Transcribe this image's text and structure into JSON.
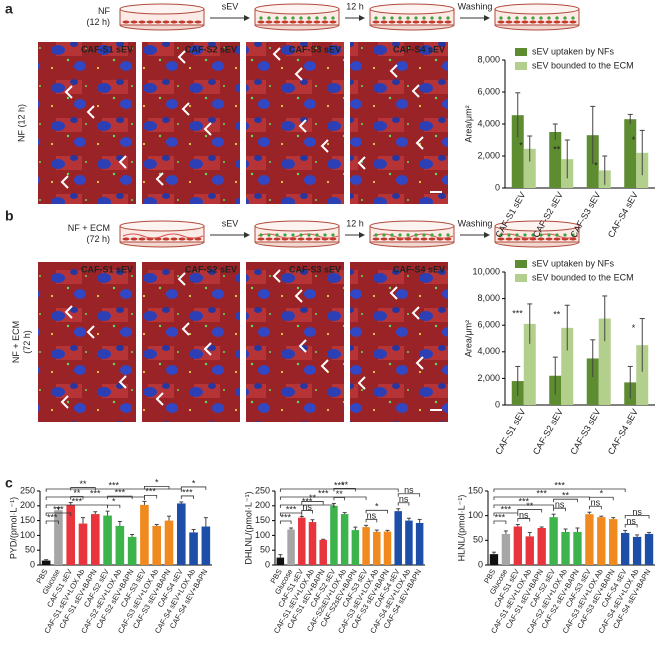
{
  "panels": {
    "a": {
      "label": "a",
      "schematic": {
        "start": [
          "NF",
          "(12 h)"
        ],
        "steps": [
          "sEV",
          "12 h",
          "Washing"
        ]
      },
      "row_label": [
        "NF (12 h)"
      ],
      "images": [
        "CAF-S1 sEV",
        "CAF-S2 sEV",
        "CAF-S3 sEV",
        "CAF-S4 sEV"
      ]
    },
    "b": {
      "label": "b",
      "schematic": {
        "start": [
          "NF + ECM",
          "(72 h)"
        ],
        "steps": [
          "sEV",
          "12 h",
          "Washing"
        ]
      },
      "row_label": [
        "NF + ECM",
        "(72 h)"
      ],
      "images": [
        "CAF-S1 sEV",
        "CAF-S2 sEV",
        "CAF-S3 sEV",
        "CAF-S4 sEV"
      ]
    },
    "c": {
      "label": "c"
    }
  },
  "chart_data": [
    {
      "type": "grouped-bar",
      "ylabel": "Area/μm²",
      "legend": "top",
      "categories": [
        "CAF-S1 sEV",
        "CAF-S2 sEV",
        "CAF-S3 sEV",
        "CAF-S4 sEV"
      ],
      "series": [
        {
          "name": "sEV uptaken by NFs",
          "color": "#5e8c31",
          "values": [
            4550,
            3500,
            3300,
            4300
          ],
          "errors": [
            1400,
            500,
            1800,
            300
          ]
        },
        {
          "name": "sEV bounded to the ECM",
          "color": "#b3cf8c",
          "values": [
            2450,
            1800,
            1100,
            2200
          ],
          "errors": [
            800,
            1200,
            900,
            1400
          ]
        }
      ],
      "significance": [
        "*",
        "**",
        "*",
        "*"
      ],
      "ylim": [
        0,
        8000
      ],
      "yticks": [
        0,
        {
          "value": 2000,
          "label": "2,000"
        },
        {
          "value": 4000,
          "label": "4,000"
        },
        {
          "value": 6000,
          "label": "6,000"
        },
        {
          "value": 8000,
          "label": "8,000"
        }
      ]
    },
    {
      "type": "grouped-bar",
      "ylabel": "Area/μm²",
      "legend": "top",
      "categories": [
        "CAF-S1 sEV",
        "CAF-S2 sEV",
        "CAF-S3 sEV",
        "CAF-S4 sEV"
      ],
      "series": [
        {
          "name": "sEV uptaken by NFs",
          "color": "#5e8c31",
          "values": [
            1800,
            2200,
            3500,
            1700
          ],
          "errors": [
            1100,
            1400,
            1400,
            1200
          ]
        },
        {
          "name": "sEV bounded to the ECM",
          "color": "#b3cf8c",
          "values": [
            6100,
            5800,
            6500,
            4500
          ],
          "errors": [
            1500,
            1700,
            1700,
            2000
          ]
        }
      ],
      "significance": [
        "***",
        "**",
        null,
        "*"
      ],
      "ylim": [
        0,
        10000
      ],
      "yticks": [
        0,
        {
          "value": 2000,
          "label": "2,000"
        },
        {
          "value": 4000,
          "label": "4,000"
        },
        {
          "value": 6000,
          "label": "6,000"
        },
        {
          "value": 8000,
          "label": "8,000"
        },
        {
          "value": 10000,
          "label": "10,000"
        }
      ]
    },
    {
      "type": "bar",
      "ylabel": "PYD/(pmol·L⁻¹)",
      "categories": [
        "PBS",
        "Glucose",
        "CAF-S1 sEV",
        "CAF-S1 sEV+LOX Ab",
        "CAF-S1 sEV+BAPN",
        "CAF-S2 sEV",
        "CAF-S2 sEV+LOX Ab",
        "CAF-S2 sEV+BAPN",
        "CAF-S3 sEV",
        "CAF-S3 sEV+LOX Ab",
        "CAF-S3 sEV+BAPN",
        "CAF-S4 sEV",
        "CAF-S4 sEV+LOX Ab",
        "CAF-S4 sEV+BAPN"
      ],
      "values": [
        15,
        185,
        203,
        140,
        172,
        167,
        132,
        95,
        203,
        132,
        150,
        208,
        110,
        130
      ],
      "errors": [
        3,
        8,
        8,
        20,
        8,
        15,
        15,
        8,
        12,
        5,
        15,
        5,
        10,
        30
      ],
      "colors": [
        "#111111",
        "#a6a6a6",
        "#e8343c",
        "#e8343c",
        "#e8343c",
        "#3cb44b",
        "#3cb44b",
        "#3cb44b",
        "#f08a1e",
        "#f08a1e",
        "#f08a1e",
        "#1e4fa8",
        "#1e4fa8",
        "#1e4fa8"
      ],
      "brackets": [
        {
          "from": 0,
          "to": 1,
          "label": "***"
        },
        {
          "from": 0,
          "to": 2,
          "label": "***"
        },
        {
          "from": 0,
          "to": 5,
          "label": "***"
        },
        {
          "from": 0,
          "to": 8,
          "label": "***"
        },
        {
          "from": 0,
          "to": 11,
          "label": "***"
        },
        {
          "from": 2,
          "to": 3,
          "label": "**"
        },
        {
          "from": 2,
          "to": 4,
          "label": "**"
        },
        {
          "from": 5,
          "to": 6,
          "label": "*"
        },
        {
          "from": 5,
          "to": 7,
          "label": "***"
        },
        {
          "from": 8,
          "to": 9,
          "label": "***"
        },
        {
          "from": 8,
          "to": 10,
          "label": "*"
        },
        {
          "from": 11,
          "to": 12,
          "label": "***"
        },
        {
          "from": 11,
          "to": 13,
          "label": "*"
        }
      ],
      "ylim": [
        0,
        250
      ],
      "yticks": [
        0,
        50,
        100,
        150,
        200,
        250
      ]
    },
    {
      "type": "bar",
      "ylabel": "DHLNL/(pmol·L⁻¹)",
      "categories": [
        "PBS",
        "Glucose",
        "CAF-S1 sEV",
        "CAF-S1 sEV+LOX Ab",
        "CAF-S1 sEV+BAPN",
        "CAF-S2 sEV",
        "CAF-S2sEV+LOX Ab",
        "CAF-S2sEV+BAPN",
        "CAF-S3 sEV",
        "CAF-S3 sEV+LOX Ab",
        "CAF-S3 sEV+BAPN",
        "CAF-S4 sEV",
        "CAF-S4 sEV+LOX Ab",
        "CAF-S4 sEV+BAPN"
      ],
      "values": [
        25,
        120,
        160,
        145,
        85,
        200,
        172,
        118,
        128,
        112,
        113,
        182,
        150,
        142
      ],
      "errors": [
        10,
        5,
        4,
        8,
        2,
        8,
        5,
        10,
        6,
        6,
        4,
        8,
        8,
        12
      ],
      "colors": [
        "#111111",
        "#a6a6a6",
        "#e8343c",
        "#e8343c",
        "#e8343c",
        "#3cb44b",
        "#3cb44b",
        "#3cb44b",
        "#f08a1e",
        "#f08a1e",
        "#f08a1e",
        "#1e4fa8",
        "#1e4fa8",
        "#1e4fa8"
      ],
      "brackets": [
        {
          "from": 0,
          "to": 1,
          "label": "***"
        },
        {
          "from": 0,
          "to": 2,
          "label": "***"
        },
        {
          "from": 0,
          "to": 5,
          "label": "***"
        },
        {
          "from": 0,
          "to": 8,
          "label": "***"
        },
        {
          "from": 0,
          "to": 11,
          "label": "***"
        },
        {
          "from": 2,
          "to": 3,
          "label": "ns"
        },
        {
          "from": 2,
          "to": 4,
          "label": "**"
        },
        {
          "from": 5,
          "to": 6,
          "label": "**"
        },
        {
          "from": 5,
          "to": 7,
          "label": "**"
        },
        {
          "from": 8,
          "to": 9,
          "label": "ns"
        },
        {
          "from": 8,
          "to": 10,
          "label": "*"
        },
        {
          "from": 11,
          "to": 12,
          "label": "ns"
        },
        {
          "from": 11,
          "to": 13,
          "label": "ns"
        }
      ],
      "ylim": [
        0,
        250
      ],
      "yticks": [
        0,
        50,
        100,
        150,
        200,
        250
      ]
    },
    {
      "type": "bar",
      "ylabel": "HLNL/(pmol·L⁻¹)",
      "categories": [
        "PBS",
        "Glucose",
        "CAF-S1 sEV",
        "CAF-S1 sEV+LOX Ab",
        "CAF-S1 sEV+BAPN",
        "CAF-S2 sEV",
        "CAF-S2 sEV+LOX Ab",
        "CAF-S2 sEV+BAPN",
        "CAF-S3 sEV",
        "CAF-S3 sEV+LOX Ab",
        "CAF-S3 sEV+BAPN",
        "CAF-S4 sEV",
        "CAF-S4 sEV+LOX Ab",
        "CAF-S4 sEV+BAPN"
      ],
      "values": [
        22,
        63,
        78,
        58,
        75,
        97,
        67,
        67,
        103,
        97,
        93,
        65,
        57,
        63
      ],
      "errors": [
        4,
        6,
        4,
        8,
        2,
        6,
        6,
        8,
        4,
        2,
        3,
        5,
        4,
        3
      ],
      "colors": [
        "#111111",
        "#a6a6a6",
        "#e8343c",
        "#e8343c",
        "#e8343c",
        "#3cb44b",
        "#3cb44b",
        "#3cb44b",
        "#f08a1e",
        "#f08a1e",
        "#f08a1e",
        "#1e4fa8",
        "#1e4fa8",
        "#1e4fa8"
      ],
      "brackets": [
        {
          "from": 0,
          "to": 1,
          "label": "***"
        },
        {
          "from": 0,
          "to": 2,
          "label": "***"
        },
        {
          "from": 0,
          "to": 5,
          "label": "***"
        },
        {
          "from": 0,
          "to": 8,
          "label": "***"
        },
        {
          "from": 0,
          "to": 11,
          "label": "***"
        },
        {
          "from": 2,
          "to": 3,
          "label": "ns"
        },
        {
          "from": 2,
          "to": 4,
          "label": "**"
        },
        {
          "from": 5,
          "to": 6,
          "label": "ns"
        },
        {
          "from": 5,
          "to": 7,
          "label": "**"
        },
        {
          "from": 8,
          "to": 9,
          "label": "ns"
        },
        {
          "from": 8,
          "to": 10,
          "label": "*"
        },
        {
          "from": 11,
          "to": 12,
          "label": "ns"
        },
        {
          "from": 11,
          "to": 13,
          "label": "ns"
        }
      ],
      "ylim": [
        0,
        150
      ],
      "yticks": [
        0,
        50,
        100,
        150
      ]
    }
  ]
}
